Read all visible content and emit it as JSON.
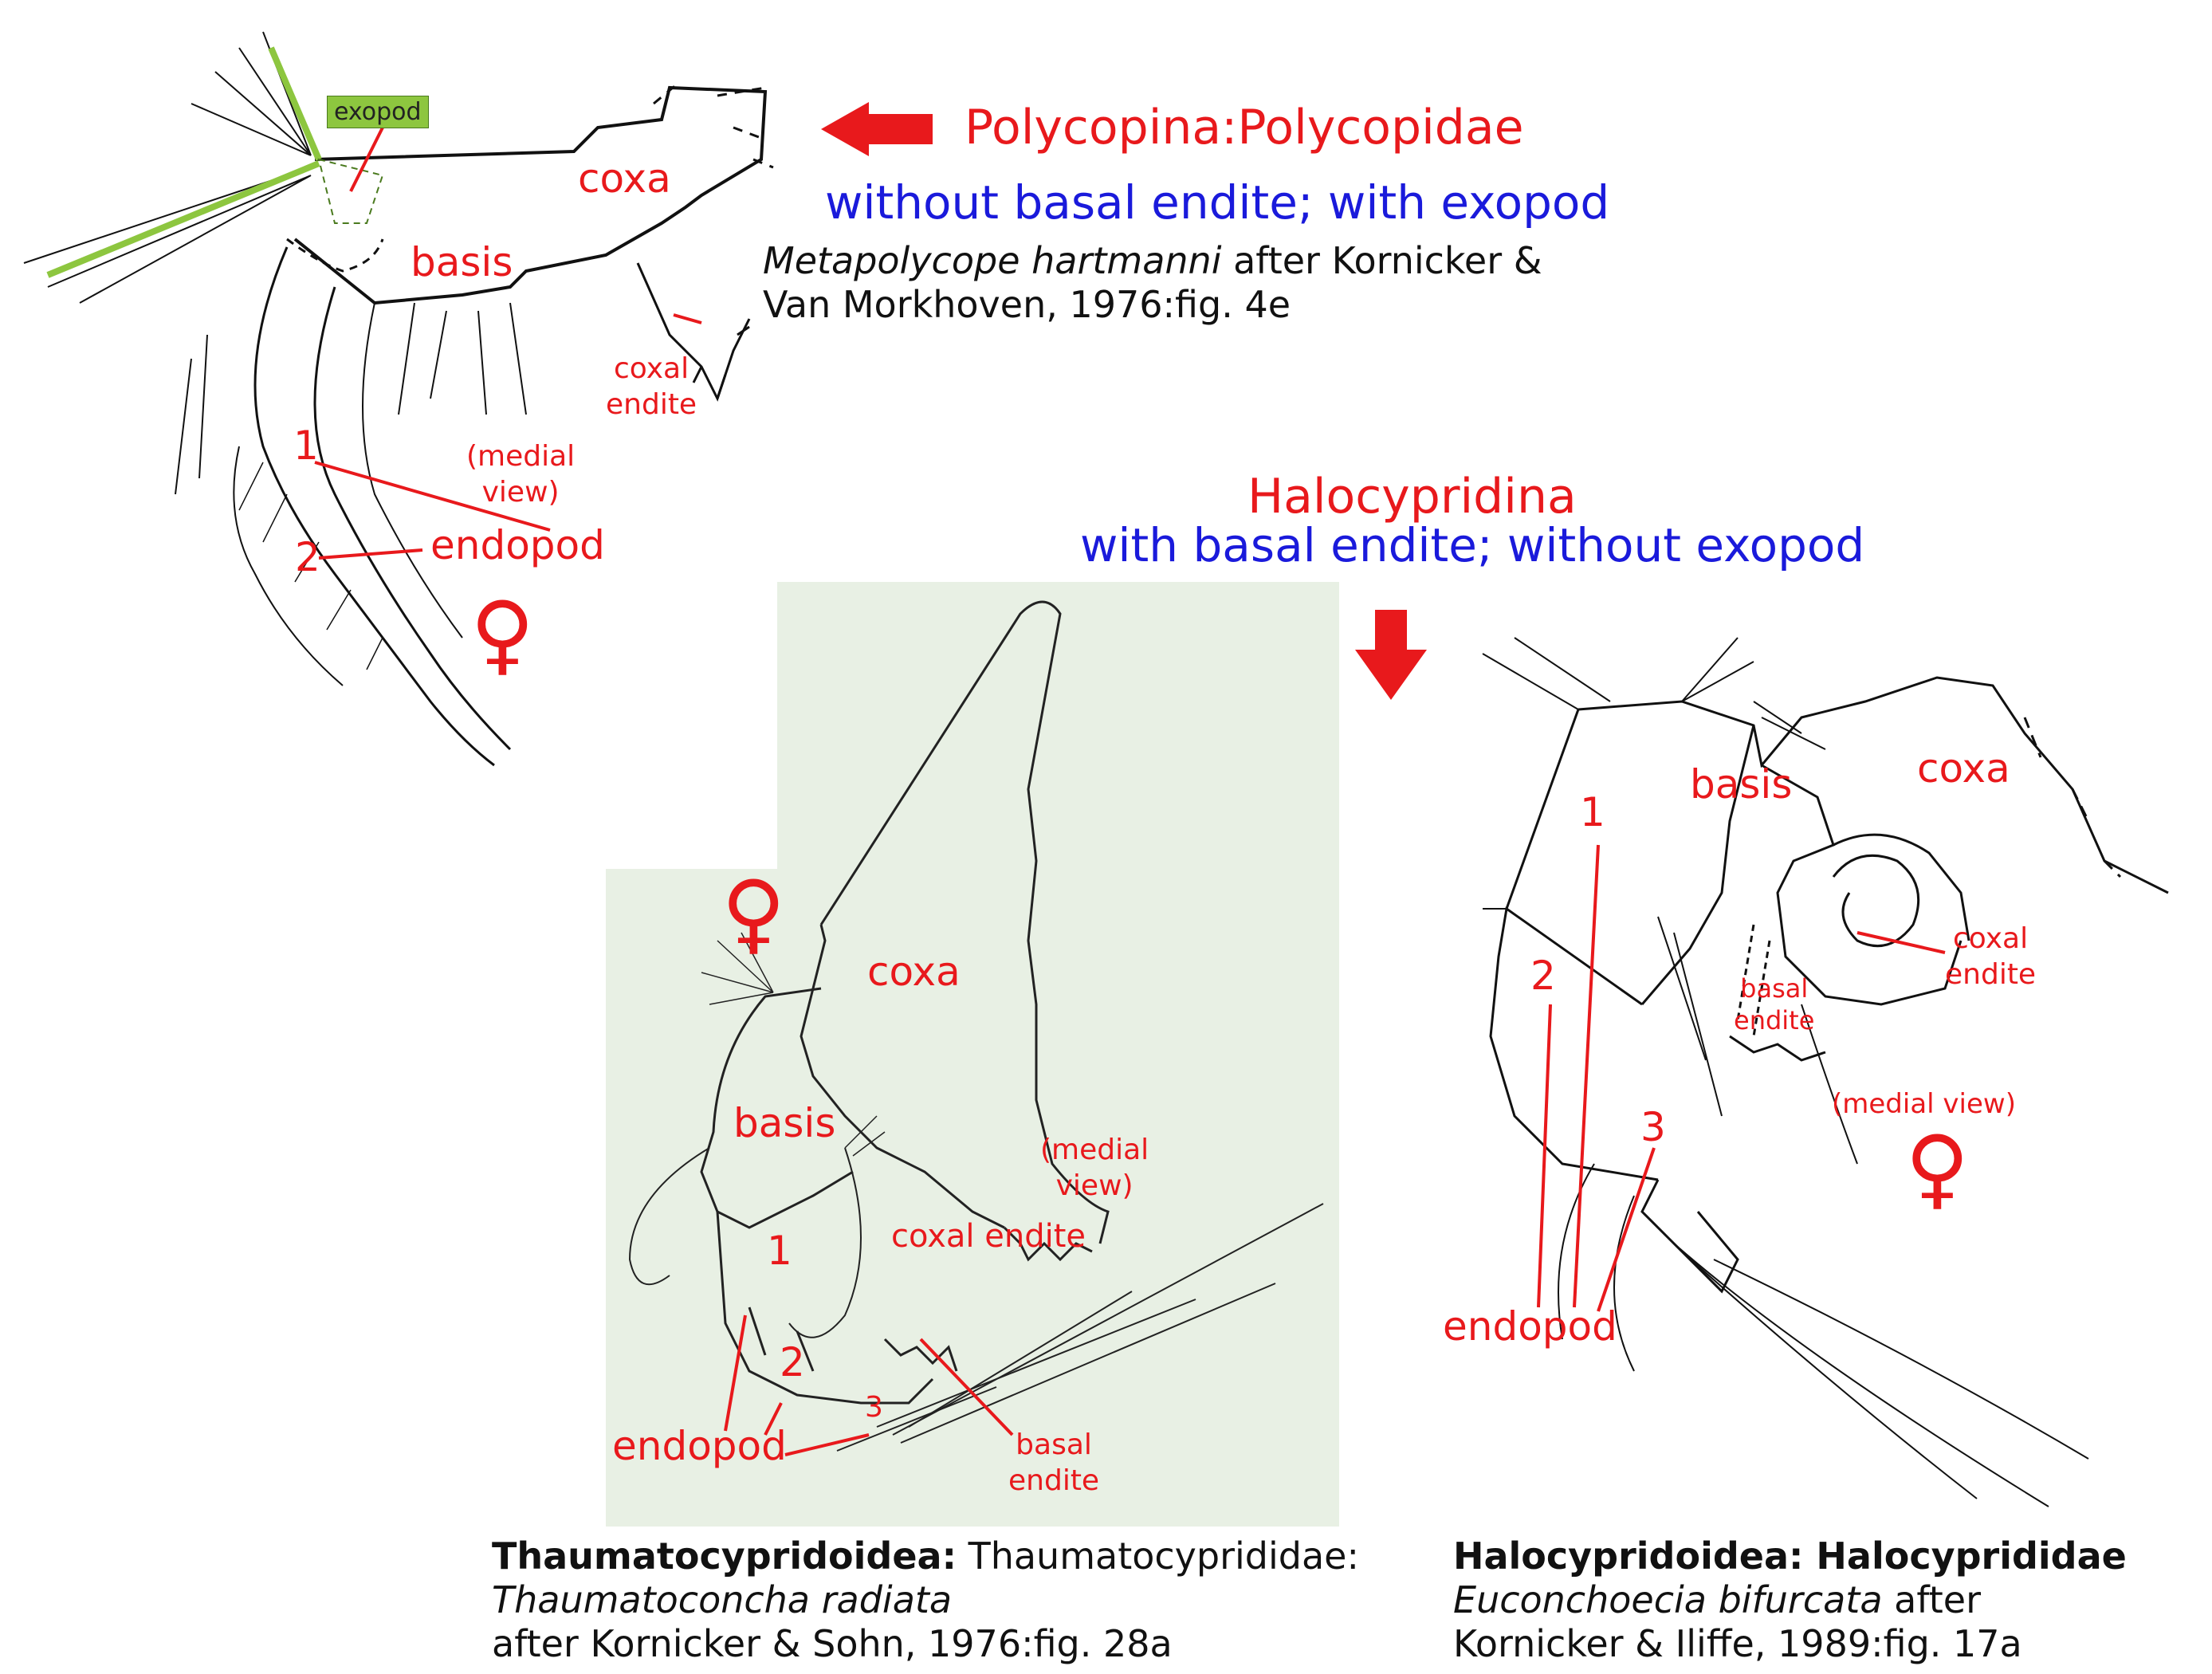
{
  "colors": {
    "label_red": "#e8191c",
    "heading_blue": "#1a1adb",
    "exopod_green": "#8dc63f",
    "panel_green": "#e8f0e4"
  },
  "polycopina": {
    "heading": "Polycopina:Polycopidae",
    "subheading": "without basal endite; with exopod",
    "species": "Metapolycope hartmanni",
    "citation_1": " after Kornicker &",
    "citation_2": "Van Morkhoven, 1976:fig. 4e",
    "labels": {
      "exopod": "exopod",
      "coxa": "coxa",
      "basis": "basis",
      "coxal": "coxal",
      "endite": "endite",
      "medial": "(medial",
      "view": "view)",
      "n1": "1",
      "n2": "2",
      "endopod": "endopod",
      "female": "♀"
    }
  },
  "halocypridina": {
    "heading": "Halocypridina",
    "subheading": "with basal endite; without exopod"
  },
  "thaumato": {
    "caption_bold": "Thaumatocypridoidea:",
    "caption_rest": " Thaumatocyprididae:",
    "species": "Thaumatoconcha radiata",
    "citation": "after Kornicker & Sohn, 1976:fig. 28a",
    "labels": {
      "coxa": "coxa",
      "basis": "basis",
      "medial": "(medial",
      "view": "view)",
      "coxal_endite": "coxal endite",
      "n1": "1",
      "n2": "2",
      "n3": "3",
      "endopod": "endopod",
      "basal": "basal",
      "endite": "endite",
      "female": "♀"
    }
  },
  "halo": {
    "caption_bold": "Halocypridoidea: Halocyprididae",
    "species": "Euconchoecia bifurcata",
    "citation_1": " after",
    "citation_2": "Kornicker & Iliffe, 1989:fig. 17a",
    "labels": {
      "basis": "basis",
      "coxa": "coxa",
      "coxal": "coxal",
      "endite": "endite",
      "basal": "basal",
      "basal_endite": "endite",
      "medial_view": "(medial view)",
      "n1": "1",
      "n2": "2",
      "n3": "3",
      "endopod": "endopod",
      "female": "♀"
    }
  }
}
